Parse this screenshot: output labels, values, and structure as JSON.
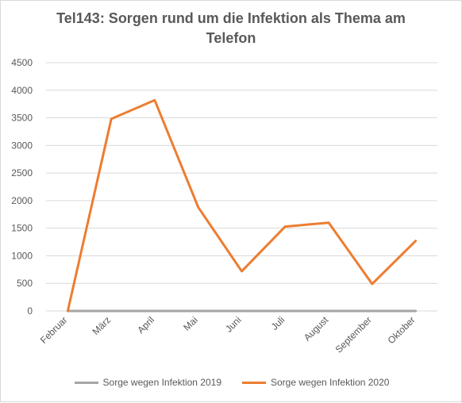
{
  "chart_data": {
    "type": "line",
    "title": "Tel143: Sorgen rund um die Infektion als Thema am Telefon",
    "categories": [
      "Februar",
      "März",
      "April",
      "Mai",
      "Juni",
      "Juli",
      "August",
      "September",
      "Oktober"
    ],
    "series": [
      {
        "name": "Sorge wegen Infektion 2019",
        "color": "#a5a5a5",
        "values": [
          0,
          0,
          0,
          0,
          0,
          0,
          0,
          0,
          0
        ]
      },
      {
        "name": "Sorge wegen Infektion 2020",
        "color": "#ed7d31",
        "values": [
          0,
          3480,
          3820,
          1880,
          720,
          1530,
          1600,
          490,
          1270
        ]
      }
    ],
    "ylim": [
      0,
      4500
    ],
    "yticks": [
      0,
      500,
      1000,
      1500,
      2000,
      2500,
      3000,
      3500,
      4000,
      4500
    ],
    "grid": true,
    "legend": "bottom"
  }
}
